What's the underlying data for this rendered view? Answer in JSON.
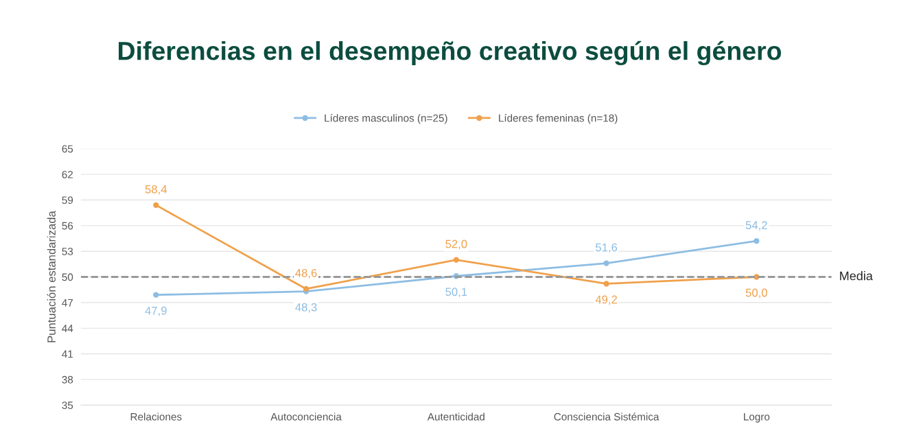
{
  "chart_data": {
    "type": "line",
    "title": "Diferencias en el desempeño creativo según el género",
    "ylabel": "Puntuación estandarizada",
    "categories": [
      "Relaciones",
      "Autoconciencia",
      "Autenticidad",
      "Consciencia Sistémica",
      "Logro"
    ],
    "series": [
      {
        "name": "Líderes masculinos (n=25)",
        "color": "#8dbde3",
        "values": [
          47.9,
          48.3,
          50.1,
          51.6,
          54.2
        ],
        "value_labels": [
          "47,9",
          "48,3",
          "50,1",
          "51,6",
          "54,2"
        ]
      },
      {
        "name": "Líderes femeninas (n=18)",
        "color": "#f0a04b",
        "values": [
          58.4,
          48.6,
          52.0,
          49.2,
          50.0
        ],
        "value_labels": [
          "58,4",
          "48,6",
          "52,0",
          "49,2",
          "50,0"
        ]
      }
    ],
    "ylim": [
      35,
      65
    ],
    "yticks": [
      35,
      38,
      41,
      44,
      47,
      50,
      53,
      56,
      59,
      62,
      65
    ],
    "grid": "y",
    "legend": "top",
    "marker": "circle",
    "line_style": "solid",
    "ref_lines": [
      {
        "axis": "y",
        "value": 50,
        "label": "Media",
        "color": "#999999",
        "line_style": "dashed"
      }
    ]
  }
}
